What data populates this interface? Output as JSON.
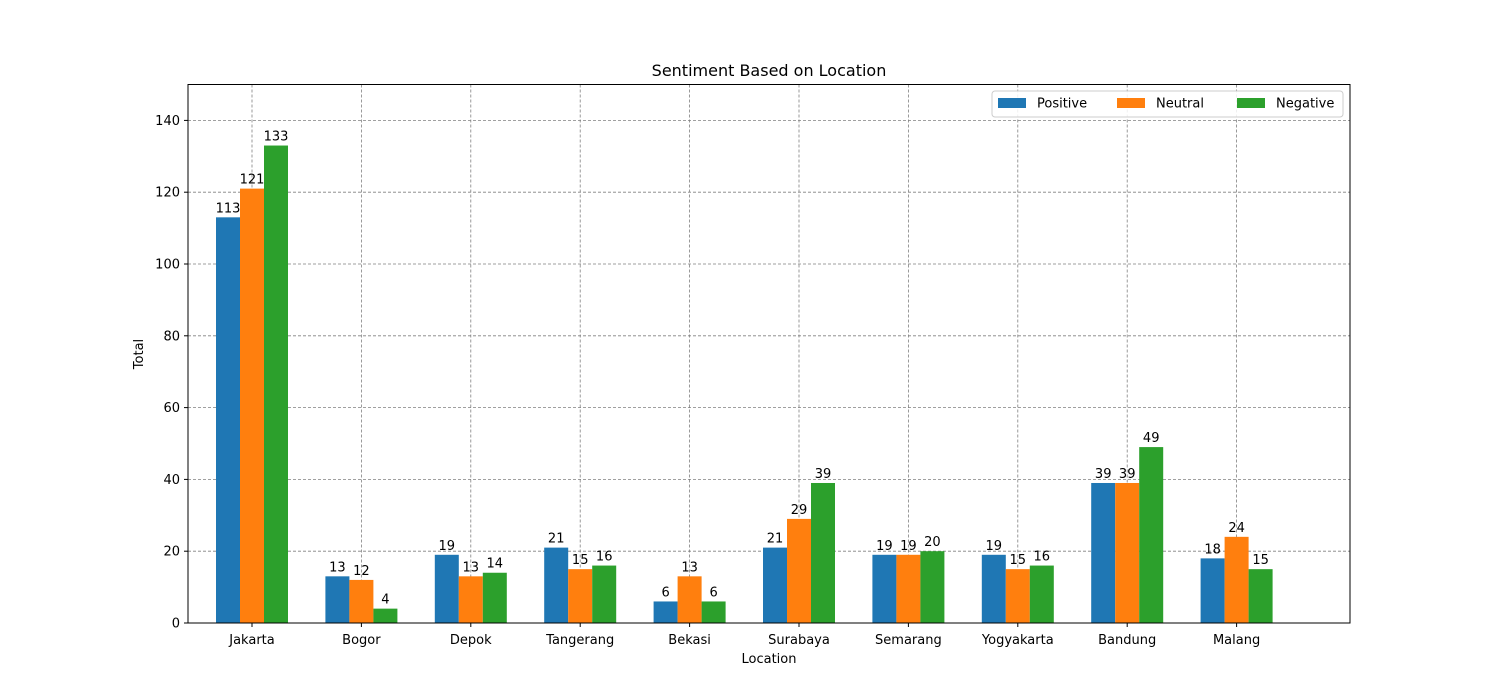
{
  "chart_data": {
    "type": "bar",
    "title": "Sentiment Based on Location",
    "xlabel": "Location",
    "ylabel": "Total",
    "ylim": [
      0,
      150
    ],
    "yticks": [
      0,
      20,
      40,
      60,
      80,
      100,
      120,
      140
    ],
    "grid": true,
    "legend_position": "top-right",
    "categories": [
      "Jakarta",
      "Bogor",
      "Depok",
      "Tangerang",
      "Bekasi",
      "Surabaya",
      "Semarang",
      "Yogyakarta",
      "Bandung",
      "Malang"
    ],
    "series": [
      {
        "name": "Positive",
        "color": "#1f77b4",
        "values": [
          113,
          13,
          19,
          21,
          6,
          21,
          19,
          19,
          39,
          18
        ]
      },
      {
        "name": "Neutral",
        "color": "#ff7f0e",
        "values": [
          121,
          12,
          13,
          15,
          13,
          29,
          19,
          15,
          39,
          24
        ]
      },
      {
        "name": "Negative",
        "color": "#2ca02c",
        "values": [
          133,
          4,
          14,
          16,
          6,
          39,
          20,
          16,
          49,
          15
        ]
      }
    ]
  }
}
